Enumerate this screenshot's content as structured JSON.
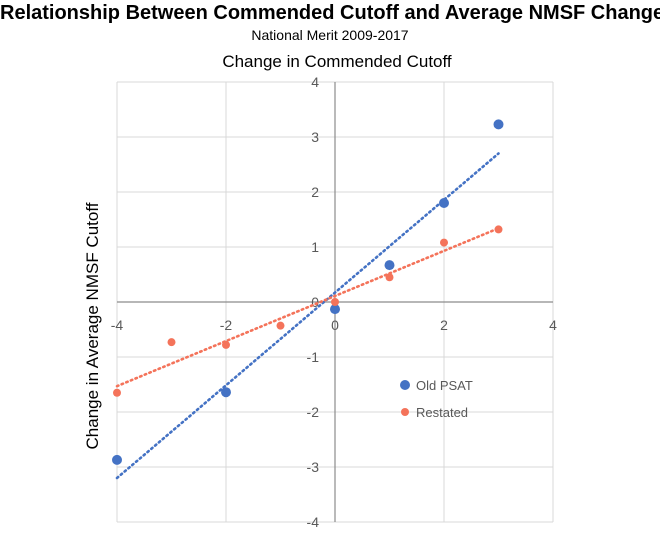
{
  "title": "Relationship Between Commended Cutoff and Average NMSF Change",
  "subtitle": "National Merit 2009-2017",
  "chart_data": {
    "type": "scatter",
    "xlabel": "Change in Commended Cutoff",
    "ylabel": "Change in Average NMSF Cutoff",
    "xlim": [
      -4,
      4
    ],
    "ylim": [
      -4,
      4
    ],
    "xticks": [
      -4,
      -2,
      0,
      2,
      4
    ],
    "yticks": [
      -4,
      -3,
      -2,
      -1,
      0,
      1,
      2,
      3,
      4
    ],
    "xtick_labels": [
      "-4",
      "-2",
      "0",
      "2",
      "4"
    ],
    "ytick_labels": [
      "-4",
      "-3",
      "-2",
      "-1",
      "0",
      "1",
      "2",
      "3",
      "4"
    ],
    "grid": true,
    "legend_position": "bottom-right",
    "series": [
      {
        "name": "Old PSAT",
        "color": "#4472C4",
        "points": [
          {
            "x": -4,
            "y": -2.87
          },
          {
            "x": -2,
            "y": -1.64
          },
          {
            "x": 0,
            "y": -0.13
          },
          {
            "x": 1,
            "y": 0.67
          },
          {
            "x": 2,
            "y": 1.8
          },
          {
            "x": 3,
            "y": 3.23
          }
        ],
        "trendline": {
          "style": "dotted",
          "x": [
            -4,
            3
          ],
          "y": [
            -3.2,
            2.7
          ]
        }
      },
      {
        "name": "Restated",
        "color": "#F4735A",
        "points": [
          {
            "x": -4,
            "y": -1.65
          },
          {
            "x": -3,
            "y": -0.73
          },
          {
            "x": -2,
            "y": -0.78
          },
          {
            "x": -1,
            "y": -0.43
          },
          {
            "x": 0,
            "y": 0.0
          },
          {
            "x": 1,
            "y": 0.45
          },
          {
            "x": 2,
            "y": 1.08
          },
          {
            "x": 3,
            "y": 1.32
          }
        ],
        "trendline": {
          "style": "dotted",
          "x": [
            -4,
            3
          ],
          "y": [
            -1.53,
            1.34
          ]
        }
      }
    ]
  }
}
